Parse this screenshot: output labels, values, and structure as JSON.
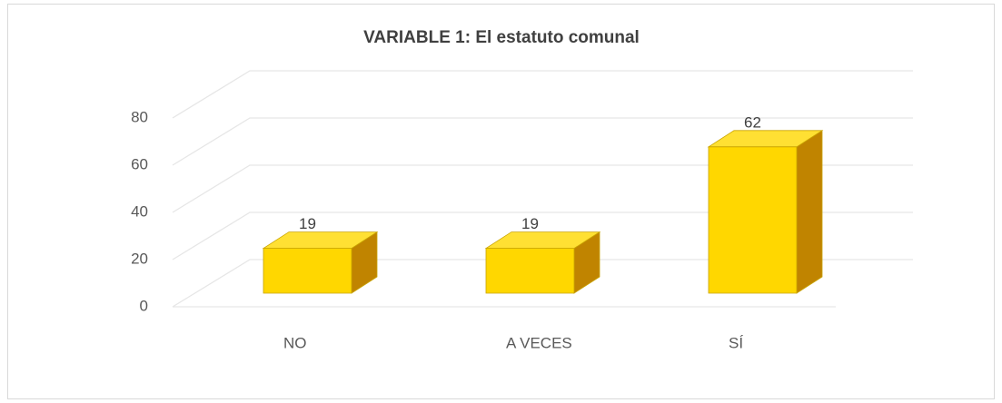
{
  "chart_data": {
    "type": "bar3d",
    "title": "VARIABLE 1: El estatuto comunal",
    "categories": [
      "NO",
      "A VECES",
      "SÍ"
    ],
    "values": [
      19,
      19,
      62
    ],
    "color": "#ffd700",
    "ylim": [
      0,
      80
    ],
    "yticks": [
      0,
      20,
      40,
      60,
      80
    ],
    "grid": true
  }
}
